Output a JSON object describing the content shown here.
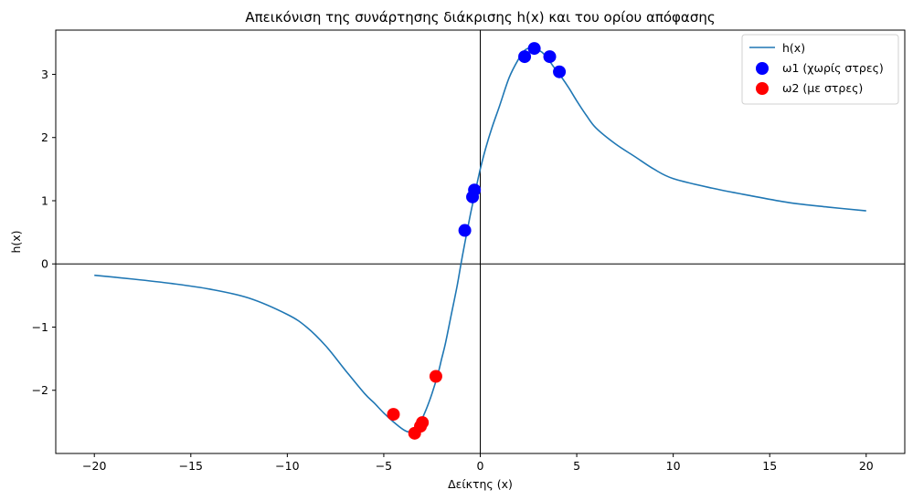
{
  "chart_data": {
    "type": "line",
    "title": "Απεικόνιση της συνάρτησης διάκρισης h(x) και του ορίου απόφασης",
    "xlabel": "Δείκτης (x)",
    "ylabel": "h(x)",
    "xlim": [
      -22,
      22
    ],
    "ylim": [
      -3.0,
      3.7
    ],
    "xticks": [
      -20,
      -15,
      -10,
      -5,
      0,
      5,
      10,
      15,
      20
    ],
    "xtick_labels": [
      "−20",
      "−15",
      "−10",
      "−5",
      "0",
      "5",
      "10",
      "15",
      "20"
    ],
    "yticks": [
      -2,
      -1,
      0,
      1,
      2,
      3
    ],
    "ytick_labels": [
      "−2",
      "−1",
      "0",
      "1",
      "2",
      "3"
    ],
    "reference_lines": {
      "x": 0,
      "y": 0
    },
    "legend_position": "top-right",
    "grid": false,
    "series": [
      {
        "name": "h(x)",
        "kind": "line",
        "color": "#1f77b4",
        "x": [
          -20,
          -18,
          -16,
          -14,
          -12,
          -10,
          -9,
          -8,
          -7,
          -6,
          -5.5,
          -5,
          -4.5,
          -4,
          -3.7,
          -3.4,
          -3.1,
          -2.8,
          -2.5,
          -2.2,
          -2,
          -1.8,
          -1.5,
          -1.2,
          -1,
          -0.8,
          -0.5,
          -0.3,
          0,
          0.3,
          0.6,
          1,
          1.5,
          2,
          2.3,
          2.6,
          2.9,
          3.2,
          3.5,
          3.8,
          4.2,
          4.6,
          5,
          5.5,
          6,
          7,
          8,
          9,
          10,
          12,
          14,
          16,
          18,
          20
        ],
        "y": [
          -0.18,
          -0.24,
          -0.31,
          -0.4,
          -0.54,
          -0.8,
          -1.0,
          -1.3,
          -1.68,
          -2.05,
          -2.2,
          -2.36,
          -2.5,
          -2.62,
          -2.66,
          -2.63,
          -2.5,
          -2.3,
          -2.05,
          -1.75,
          -1.5,
          -1.25,
          -0.8,
          -0.35,
          0.0,
          0.33,
          0.8,
          1.08,
          1.5,
          1.85,
          2.15,
          2.5,
          2.95,
          3.25,
          3.38,
          3.42,
          3.4,
          3.35,
          3.25,
          3.12,
          2.96,
          2.78,
          2.58,
          2.35,
          2.15,
          1.9,
          1.7,
          1.5,
          1.35,
          1.2,
          1.08,
          0.97,
          0.9,
          0.84
        ]
      },
      {
        "name": "ω1 (χωρίς στρες)",
        "kind": "scatter",
        "color": "#0000ff",
        "x": [
          -0.8,
          -0.4,
          -0.3,
          2.3,
          2.8,
          3.6,
          4.1
        ],
        "y": [
          0.53,
          1.06,
          1.17,
          3.28,
          3.41,
          3.28,
          3.04
        ]
      },
      {
        "name": "ω2 (με στρες)",
        "kind": "scatter",
        "color": "#ff0000",
        "x": [
          -4.5,
          -3.4,
          -3.1,
          -3.0,
          -2.3
        ],
        "y": [
          -2.38,
          -2.68,
          -2.57,
          -2.51,
          -1.78
        ]
      }
    ]
  }
}
